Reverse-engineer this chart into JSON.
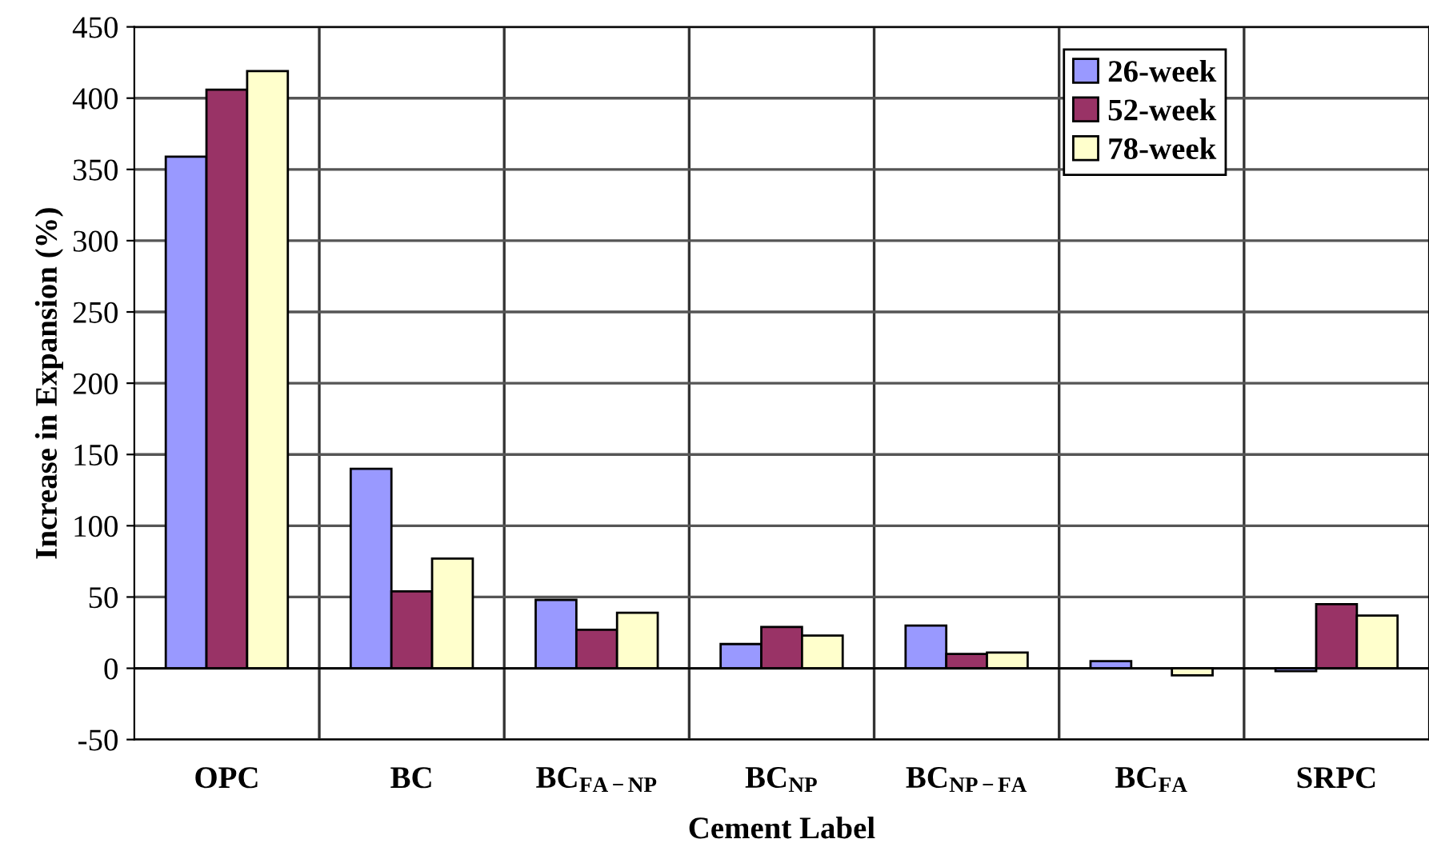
{
  "chart_data": {
    "type": "bar",
    "xlabel": "Cement Label",
    "ylabel": "Increase in Expansion (%)",
    "categories": [
      "OPC",
      "BC",
      "BC$_{FA−NP}$",
      "BC$_{NP}$",
      "BC$_{NP−FA}$",
      "BC$_{FA}$",
      "SRPC"
    ],
    "series": [
      {
        "name": "26-week",
        "color": "#9999ff",
        "values": [
          359,
          140,
          48,
          17,
          30,
          5,
          -2
        ]
      },
      {
        "name": "52-week",
        "color": "#993366",
        "values": [
          406,
          54,
          27,
          29,
          10,
          null,
          45
        ]
      },
      {
        "name": "78-week",
        "color": "#ffffcc",
        "values": [
          419,
          77,
          39,
          23,
          11,
          -5,
          37
        ]
      }
    ],
    "ylim": [
      -50,
      450
    ],
    "yticks": [
      -50,
      0,
      50,
      100,
      150,
      200,
      250,
      300,
      350,
      400,
      450
    ],
    "grid": true,
    "legend": "top right"
  }
}
